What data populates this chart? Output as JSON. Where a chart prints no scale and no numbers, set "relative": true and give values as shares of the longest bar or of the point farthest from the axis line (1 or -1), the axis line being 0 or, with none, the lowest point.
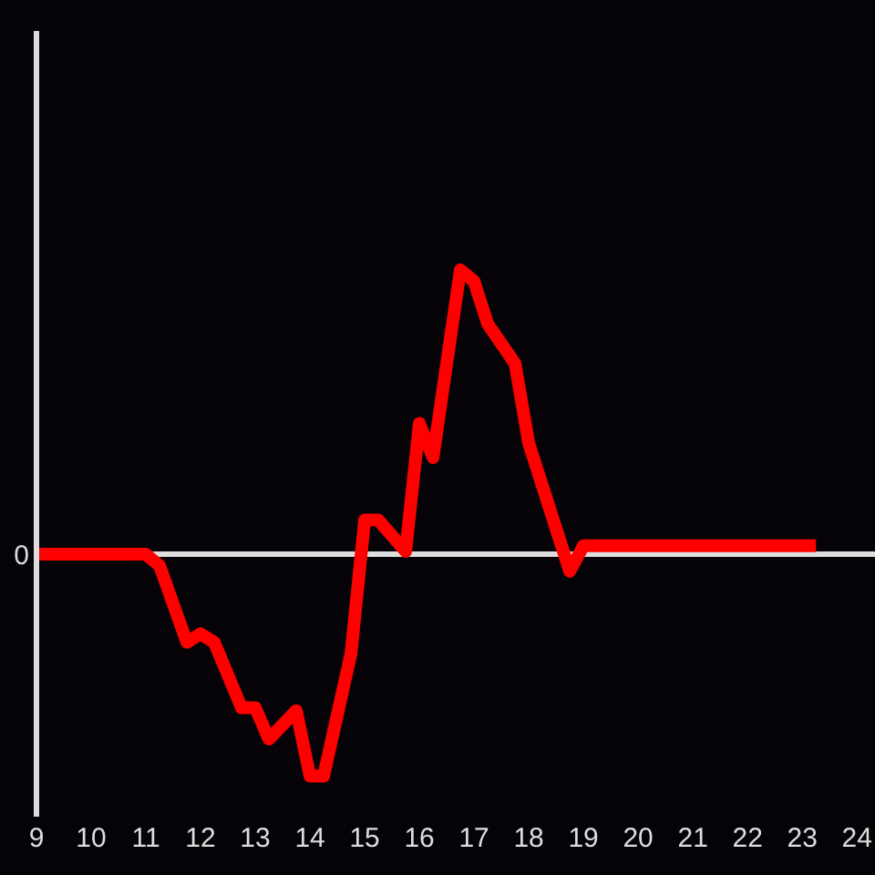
{
  "chart_data": {
    "type": "line",
    "relative": true,
    "x": [
      9,
      11,
      11.25,
      11.75,
      12,
      12.25,
      12.75,
      13,
      13.25,
      13.75,
      14,
      14.25,
      14.75,
      15,
      15.25,
      15.75,
      16,
      16.25,
      16.75,
      17,
      17.25,
      17.75,
      18,
      18.75,
      19,
      23.25
    ],
    "series": [
      {
        "color": "#ff0000",
        "values": [
          0,
          0,
          -0.04,
          -0.31,
          -0.28,
          -0.31,
          -0.54,
          -0.54,
          -0.65,
          -0.55,
          -0.78,
          -0.78,
          -0.35,
          0.12,
          0.12,
          0.01,
          0.46,
          0.34,
          1,
          0.96,
          0.81,
          0.67,
          0.39,
          -0.06,
          0.03,
          0.03
        ]
      }
    ],
    "xlim": [
      9,
      24.33
    ],
    "xticks": [
      9,
      10,
      11,
      12,
      13,
      14,
      15,
      16,
      17,
      18,
      19,
      20,
      21,
      22,
      23,
      24
    ],
    "ref_lines": [
      {
        "axis": "y",
        "value": 0,
        "label": "0",
        "color": "#dddddd"
      }
    ]
  }
}
